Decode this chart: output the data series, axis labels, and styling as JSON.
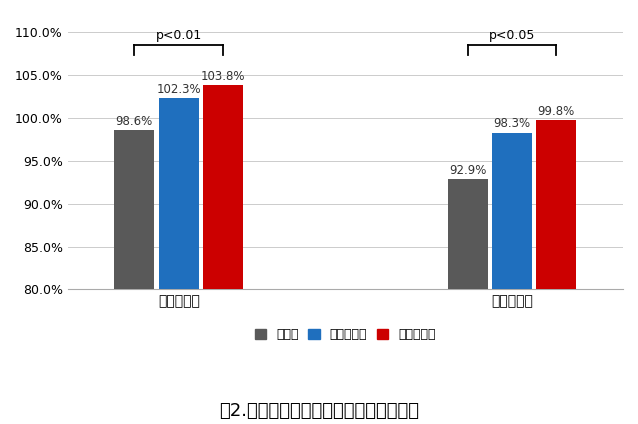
{
  "groups": [
    "平均パワー",
    "最大パワー"
  ],
  "series": [
    {
      "label": "無入浴",
      "color": "#595959",
      "values": [
        98.6,
        92.9
      ]
    },
    {
      "label": "さら湯入浴",
      "color": "#1f6fbe",
      "values": [
        102.3,
        98.3
      ]
    },
    {
      "label": "入浴剤入浴",
      "color": "#cc0000",
      "values": [
        103.8,
        99.8
      ]
    }
  ],
  "ylim": [
    80.0,
    112.0
  ],
  "yticks": [
    80.0,
    85.0,
    90.0,
    95.0,
    100.0,
    105.0,
    110.0
  ],
  "caption": "嘷2.　平均パワーと最大パワーの変化率",
  "bar_width": 0.18,
  "background_color": "#ffffff",
  "grid_color": "#cccccc",
  "font_size_tick": 9,
  "font_size_label": 10,
  "font_size_value": 8.5,
  "font_size_caption": 13,
  "font_size_legend": 9,
  "font_size_sig": 9
}
